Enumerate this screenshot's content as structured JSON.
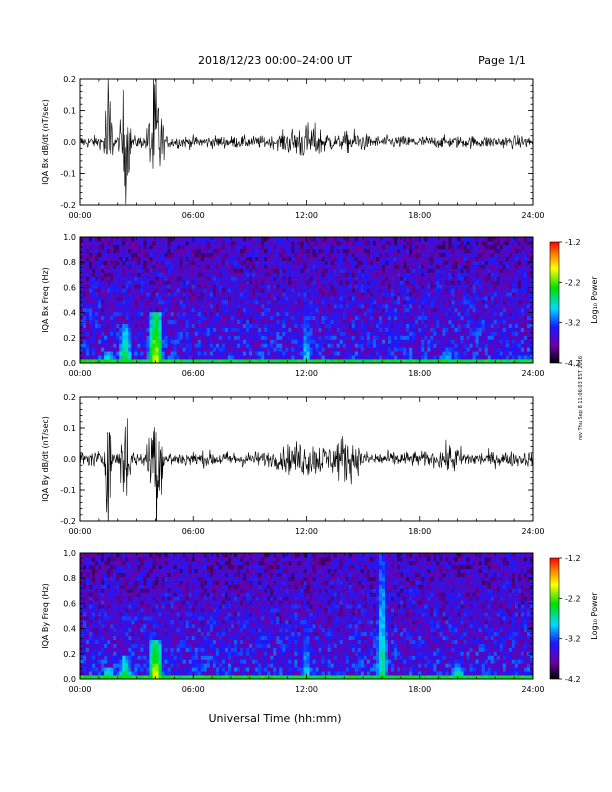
{
  "header": {
    "title": "2018/12/23  00:00–24:00 UT",
    "page": "Page 1/1"
  },
  "xaxis": {
    "label": "Universal Time (hh:mm)",
    "ticks": [
      "00:00",
      "06:00",
      "12:00",
      "18:00",
      "24:00"
    ]
  },
  "side_note": "rev Thu Sep 8 11:06:03 EST 2016",
  "colorbar": {
    "label": "Log₁₀ Power",
    "ticks": [
      "-1.2",
      "-2.2",
      "-3.2",
      "-4.2"
    ]
  },
  "chart_data": [
    {
      "type": "line",
      "name": "IQA Bx dB/dt",
      "ylabel": "IQA Bx dB/dt (nT/sec)",
      "xlim": [
        0,
        24
      ],
      "ylim": [
        -0.2,
        0.2
      ],
      "yticks": [
        "0.2",
        "0.1",
        "0.0",
        "-0.1",
        "-0.2"
      ],
      "grid": false,
      "baseline_amplitude": 0.02,
      "bursts": [
        {
          "t": 1.5,
          "width": 0.2,
          "amp": 0.25
        },
        {
          "t": 2.4,
          "width": 0.25,
          "amp": 0.2
        },
        {
          "t": 4.0,
          "width": 0.35,
          "amp": 0.25
        },
        {
          "t": 12.0,
          "width": 1.6,
          "amp": 0.06
        },
        {
          "t": 14.5,
          "width": 1.0,
          "amp": 0.04
        }
      ]
    },
    {
      "type": "heatmap",
      "name": "IQA Bx spectrogram",
      "ylabel": "IQA Bx Freq (Hz)",
      "xlim": [
        0,
        24
      ],
      "ylim": [
        0,
        1.0
      ],
      "yticks": [
        "1.0",
        "0.8",
        "0.6",
        "0.4",
        "0.2",
        "0.0"
      ],
      "zlim": [
        -4.2,
        -1.2
      ],
      "colorscale": [
        "#000000",
        "#6b00a8",
        "#1a1aff",
        "#00d8ff",
        "#00e000",
        "#ffff00",
        "#ff8000",
        "#ff0000"
      ],
      "features": [
        {
          "t": 1.5,
          "fmax": 0.1,
          "power": -2.6
        },
        {
          "t": 2.4,
          "fmax": 0.3,
          "power": -2.6
        },
        {
          "t": 4.0,
          "fmax": 0.4,
          "power": -2.2
        },
        {
          "t": 12.0,
          "fmax": 0.5,
          "power": -3.0
        },
        {
          "t": 19.5,
          "fmax": 0.12,
          "power": -2.8
        }
      ]
    },
    {
      "type": "line",
      "name": "IQA By dB/dt",
      "ylabel": "IQA By dB/dt (nT/sec)",
      "xlim": [
        0,
        24
      ],
      "ylim": [
        -0.2,
        0.2
      ],
      "yticks": [
        "0.2",
        "0.1",
        "0.0",
        "-0.1",
        "-0.2"
      ],
      "grid": false,
      "baseline_amplitude": 0.025,
      "bursts": [
        {
          "t": 1.5,
          "width": 0.2,
          "amp": 0.2
        },
        {
          "t": 2.4,
          "width": 0.25,
          "amp": 0.2
        },
        {
          "t": 4.0,
          "width": 0.35,
          "amp": 0.25
        },
        {
          "t": 12.0,
          "width": 2.0,
          "amp": 0.06
        },
        {
          "t": 14.0,
          "width": 1.0,
          "amp": 0.08
        },
        {
          "t": 19.7,
          "width": 1.0,
          "amp": 0.05
        }
      ]
    },
    {
      "type": "heatmap",
      "name": "IQA By spectrogram",
      "ylabel": "IQA By Freq (Hz)",
      "xlim": [
        0,
        24
      ],
      "ylim": [
        0,
        1.0
      ],
      "yticks": [
        "1.0",
        "0.8",
        "0.6",
        "0.4",
        "0.2",
        "0.0"
      ],
      "zlim": [
        -4.2,
        -1.2
      ],
      "colorscale": [
        "#000000",
        "#6b00a8",
        "#1a1aff",
        "#00d8ff",
        "#00e000",
        "#ffff00",
        "#ff8000",
        "#ff0000"
      ],
      "features": [
        {
          "t": 1.5,
          "fmax": 0.1,
          "power": -2.6
        },
        {
          "t": 2.4,
          "fmax": 0.2,
          "power": -2.6
        },
        {
          "t": 4.0,
          "fmax": 0.3,
          "power": -2.2
        },
        {
          "t": 12.0,
          "fmax": 0.5,
          "power": -3.0
        },
        {
          "t": 16.0,
          "fmax": 1.0,
          "power": -2.8
        },
        {
          "t": 20.0,
          "fmax": 0.12,
          "power": -2.6
        }
      ]
    }
  ]
}
